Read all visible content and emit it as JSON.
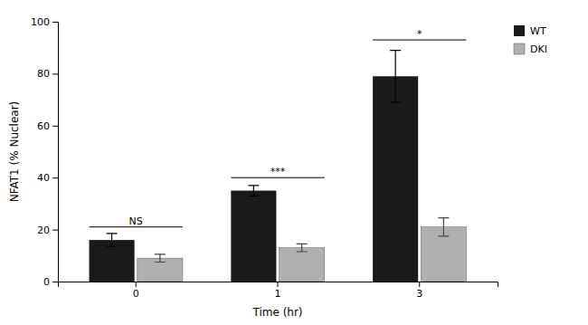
{
  "chart_data": {
    "type": "bar",
    "categories": [
      "0",
      "1",
      "3"
    ],
    "xlabel": "Time (hr)",
    "ylabel": "NFAT1 (% Nuclear)",
    "series": [
      {
        "name": "WT",
        "color": "#1a1a1a",
        "values": [
          16,
          35,
          79
        ],
        "errors": [
          2.5,
          2.0,
          10
        ]
      },
      {
        "name": "DKI",
        "color": "#b0b0b0",
        "values": [
          9,
          13,
          21
        ],
        "errors": [
          1.5,
          1.5,
          3.5
        ]
      }
    ],
    "ylim": [
      0,
      100
    ],
    "yticks": [
      0,
      20,
      40,
      60,
      80,
      100
    ],
    "legend": "upper right",
    "annotations": [
      {
        "text": "NS",
        "category": "0",
        "y": 21
      },
      {
        "text": "***",
        "category": "1",
        "y": 40
      },
      {
        "text": "*",
        "category": "3",
        "y": 93
      }
    ]
  }
}
